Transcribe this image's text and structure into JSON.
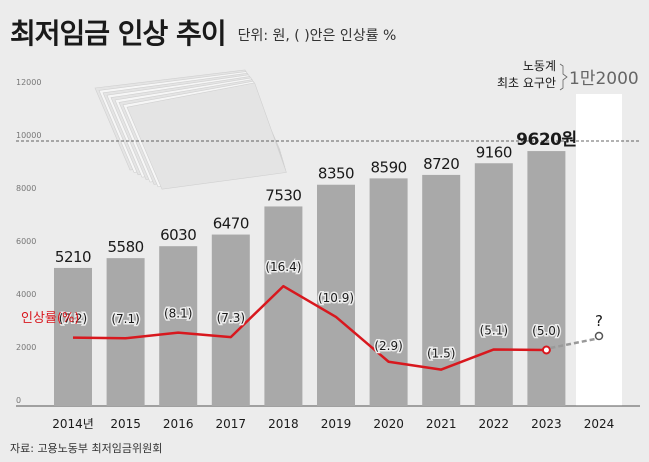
{
  "title": "최저임금 인상 추이",
  "subtitle": "단위: 원, ( )안은 인상률 %",
  "source": "자료: 고용노동부 최저임금위원회",
  "colors": {
    "bar": "#a9a9a9",
    "line": "#d8181e",
    "dashed": "#999999",
    "text": "#1a1a1a",
    "axis": "#777777",
    "grid": "#333333"
  },
  "chart_data": {
    "type": "bar",
    "categories": [
      "2014년",
      "2015",
      "2016",
      "2017",
      "2018",
      "2019",
      "2020",
      "2021",
      "2022",
      "2023",
      "2024"
    ],
    "values": [
      5210,
      5580,
      6030,
      6470,
      7530,
      8350,
      8590,
      8720,
      9160,
      9620,
      null
    ],
    "value_labels": [
      "5210",
      "5580",
      "6030",
      "6470",
      "7530",
      "8350",
      "8590",
      "8720",
      "9160",
      "9620원",
      ""
    ],
    "ylim": [
      0,
      12000
    ],
    "yticks": [
      0,
      2000,
      4000,
      6000,
      8000,
      10000,
      12000
    ],
    "ytick_labels": [
      "0",
      "2000",
      "4000",
      "6000",
      "8000",
      "10000",
      "12000"
    ],
    "reference_line": 10000,
    "growth_series": {
      "name": "인상률(%)",
      "values": [
        7.2,
        7.1,
        8.1,
        7.3,
        16.4,
        10.9,
        2.9,
        1.5,
        5.1,
        5.0
      ],
      "labels": [
        "(7.2)",
        "(7.1)",
        "(8.1)",
        "(7.3)",
        "(16.4)",
        "(10.9)",
        "(2.9)",
        "(1.5)",
        "(5.1)",
        "(5.0)"
      ],
      "projection_label": "?"
    },
    "annotation": {
      "line1": "노동계",
      "line2": "최초 요구안",
      "value": "1만2000"
    }
  }
}
